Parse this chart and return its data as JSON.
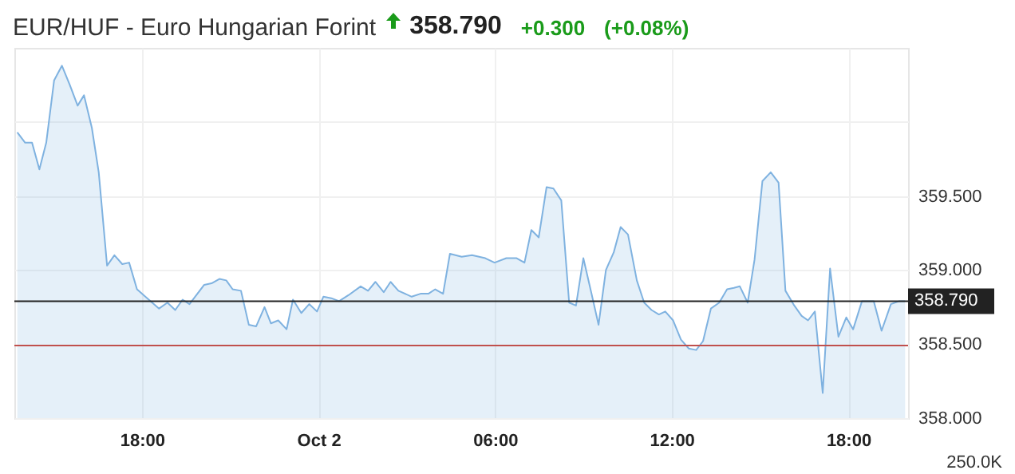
{
  "chart_data": {
    "type": "area",
    "title": "EUR/HUF - Euro Hungarian Forint",
    "subtitle": "358.790 +0.300 (+0.08%)",
    "x": [
      "--10-01T13:46",
      "--10-01T14:02",
      "--10-01T14:16",
      "--10-01T14:31",
      "--10-01T14:45",
      "--10-01T15:01",
      "--10-01T15:17",
      "--10-01T15:33",
      "--10-01T15:49",
      "--10-01T16:02",
      "--10-01T16:18",
      "--10-01T16:32",
      "--10-01T16:49",
      "--10-01T17:04",
      "--10-01T17:20",
      "--10-01T17:34",
      "--10-01T17:50",
      "--10-01T18:14",
      "--10-01T18:35",
      "--10-01T18:52",
      "--10-01T19:08",
      "--10-01T19:23",
      "--10-01T19:37",
      "--10-01T20:07",
      "--10-01T20:22",
      "--10-01T20:38",
      "--10-01T20:52",
      "--10-01T21:05",
      "--10-01T21:22",
      "--10-01T21:38",
      "--10-01T21:53",
      "--10-01T22:10",
      "--10-01T22:23",
      "--10-01T22:38",
      "--10-01T22:55",
      "--10-01T23:08",
      "--10-01T23:25",
      "--10-01T23:41",
      "--10-01T23:57",
      "--10-02T00:10",
      "--10-02T00:26",
      "--10-02T00:42",
      "--10-02T01:01",
      "--10-02T01:26",
      "--10-02T01:41",
      "--10-02T01:56",
      "--10-02T02:13",
      "--10-02T02:27",
      "--10-02T02:43",
      "--10-02T03:10",
      "--10-02T03:28",
      "--10-02T03:44",
      "--10-02T03:58",
      "--10-02T04:14",
      "--10-02T04:28",
      "--10-02T04:52",
      "--10-02T05:13",
      "--10-02T05:40",
      "--10-02T05:59",
      "--10-02T06:23",
      "--10-02T06:44",
      "--10-02T07:00",
      "--10-02T07:14",
      "--10-02T07:29",
      "--10-02T07:45",
      "--10-02T07:59",
      "--10-02T08:15",
      "--10-02T08:31",
      "--10-02T08:45",
      "--10-02T09:00",
      "--10-02T09:16",
      "--10-02T09:31",
      "--10-02T09:46",
      "--10-02T10:02",
      "--10-02T10:16",
      "--10-02T10:31",
      "--10-02T10:49",
      "--10-02T11:04",
      "--10-02T11:19",
      "--10-02T11:34",
      "--10-02T11:47",
      "--10-02T12:03",
      "--10-02T12:19",
      "--10-02T12:35",
      "--10-02T12:50",
      "--10-02T13:04",
      "--10-02T13:20",
      "--10-02T13:37",
      "--10-02T13:53",
      "--10-02T14:07",
      "--10-02T14:19",
      "--10-02T14:35",
      "--10-02T14:49",
      "--10-02T15:05",
      "--10-02T15:22",
      "--10-02T15:38",
      "--10-02T15:52",
      "--10-02T16:10",
      "--10-02T16:25",
      "--10-02T16:38",
      "--10-02T16:52",
      "--10-02T17:08",
      "--10-02T17:23",
      "--10-02T17:40",
      "--10-02T17:56",
      "--10-02T18:10",
      "--10-02T18:28",
      "--10-02T18:52",
      "--10-02T19:08",
      "--10-02T19:27",
      "--10-02T19:44",
      "--10-02T19:56"
    ],
    "series": [
      {
        "color": "#7fb2e0",
        "values": [
          359.93,
          359.86,
          359.86,
          359.68,
          359.86,
          360.28,
          360.38,
          360.25,
          360.11,
          360.18,
          359.96,
          359.66,
          359.03,
          359.1,
          359.04,
          359.05,
          358.87,
          358.8,
          358.74,
          358.78,
          358.73,
          358.8,
          358.77,
          358.9,
          358.91,
          358.94,
          358.93,
          358.87,
          358.86,
          358.63,
          358.62,
          358.75,
          358.64,
          358.66,
          358.6,
          358.8,
          358.71,
          358.77,
          358.72,
          358.82,
          358.81,
          358.79,
          358.83,
          358.89,
          358.86,
          358.92,
          358.85,
          358.92,
          358.86,
          358.82,
          358.84,
          358.84,
          358.87,
          358.84,
          359.11,
          359.09,
          359.1,
          359.08,
          359.05,
          359.08,
          359.08,
          359.05,
          359.27,
          359.22,
          359.56,
          359.55,
          359.47,
          358.78,
          358.76,
          359.08,
          358.85,
          358.63,
          359.0,
          359.12,
          359.29,
          359.24,
          358.93,
          358.78,
          358.73,
          358.7,
          358.72,
          358.66,
          358.53,
          358.47,
          358.46,
          358.52,
          358.74,
          358.78,
          358.87,
          358.88,
          358.89,
          358.78,
          359.07,
          359.6,
          359.66,
          359.59,
          358.86,
          358.76,
          358.69,
          358.66,
          358.72,
          358.17,
          359.01,
          358.55,
          358.68,
          358.6,
          358.79,
          358.79,
          358.59,
          358.77,
          358.79,
          358.79
        ]
      }
    ],
    "xlim": [
      "--10-01T13:40",
      "--10-02T20:02"
    ],
    "xticks": [
      {
        "value": "--10-01T18:00",
        "label": "18:00"
      },
      {
        "value": "--10-02T00:00",
        "label": "Oct 2"
      },
      {
        "value": "--10-02T06:00",
        "label": "06:00"
      },
      {
        "value": "--10-02T12:00",
        "label": "12:00"
      },
      {
        "value": "--10-02T18:00",
        "label": "18:00"
      }
    ],
    "ylim": [
      358.0,
      360.5
    ],
    "yticks": [
      {
        "value": 358,
        "label": "358.000"
      },
      {
        "value": 358.5,
        "label": "358.500"
      },
      {
        "value": 359,
        "label": "359.000"
      },
      {
        "value": 359.5,
        "label": "359.500"
      },
      {
        "value": 360,
        "label": null
      }
    ],
    "ref_lines": [
      {
        "axis": "y",
        "value": 358.79,
        "label": "358.790",
        "color": "#222222"
      },
      {
        "axis": "y",
        "value": 358.49,
        "color": "#c0504d"
      }
    ],
    "annotations": [
      "250.0K"
    ],
    "grid": true
  }
}
